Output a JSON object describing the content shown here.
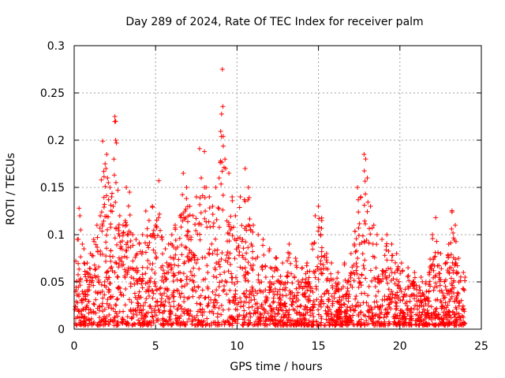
{
  "chart_data": {
    "type": "scatter",
    "title": "Day 289 of 2024, Rate Of TEC Index for receiver palm",
    "xlabel": "GPS time / hours",
    "ylabel": "ROTI / TECUs",
    "xlim": [
      0,
      25
    ],
    "ylim": [
      0,
      0.3
    ],
    "xticks": [
      0,
      5,
      10,
      15,
      20,
      25
    ],
    "xtick_labels": [
      "0",
      "5",
      "10",
      "15",
      "20",
      "25"
    ],
    "yticks": [
      0,
      0.05,
      0.1,
      0.15,
      0.2,
      0.25,
      0.3
    ],
    "ytick_labels": [
      "0",
      "0.05",
      "0.1",
      "0.15",
      "0.2",
      "0.25",
      "0.3"
    ],
    "grid": true,
    "marker": "plus",
    "color": "#ff0000",
    "series": [
      {
        "name": "ROTI",
        "points": [
          [
            0.1,
            0.072
          ],
          [
            0.2,
            0.095
          ],
          [
            0.3,
            0.128
          ],
          [
            0.35,
            0.12
          ],
          [
            0.4,
            0.105
          ],
          [
            0.5,
            0.09
          ],
          [
            0.6,
            0.085
          ],
          [
            0.8,
            0.07
          ],
          [
            1.0,
            0.08
          ],
          [
            1.2,
            0.095
          ],
          [
            1.4,
            0.11
          ],
          [
            1.6,
            0.12
          ],
          [
            1.75,
            0.199
          ],
          [
            1.9,
            0.175
          ],
          [
            1.95,
            0.17
          ],
          [
            2.0,
            0.185
          ],
          [
            2.05,
            0.16
          ],
          [
            2.1,
            0.155
          ],
          [
            2.2,
            0.15
          ],
          [
            2.3,
            0.14
          ],
          [
            2.4,
            0.13
          ],
          [
            2.5,
            0.225
          ],
          [
            2.55,
            0.22
          ],
          [
            2.55,
            0.2
          ],
          [
            2.6,
            0.197
          ],
          [
            2.8,
            0.12
          ],
          [
            3.0,
            0.11
          ],
          [
            3.2,
            0.15
          ],
          [
            3.4,
            0.145
          ],
          [
            3.6,
            0.1
          ],
          [
            3.8,
            0.095
          ],
          [
            4.0,
            0.09
          ],
          [
            4.2,
            0.1
          ],
          [
            4.4,
            0.125
          ],
          [
            4.6,
            0.115
          ],
          [
            4.8,
            0.13
          ],
          [
            5.0,
            0.11
          ],
          [
            5.2,
            0.157
          ],
          [
            5.4,
            0.095
          ],
          [
            5.6,
            0.085
          ],
          [
            5.8,
            0.09
          ],
          [
            6.0,
            0.1
          ],
          [
            6.2,
            0.11
          ],
          [
            6.5,
            0.12
          ],
          [
            6.7,
            0.165
          ],
          [
            6.9,
            0.15
          ],
          [
            7.1,
            0.13
          ],
          [
            7.3,
            0.12
          ],
          [
            7.5,
            0.14
          ],
          [
            7.7,
            0.191
          ],
          [
            7.8,
            0.16
          ],
          [
            8.0,
            0.188
          ],
          [
            8.1,
            0.15
          ],
          [
            8.3,
            0.14
          ],
          [
            8.5,
            0.13
          ],
          [
            8.7,
            0.15
          ],
          [
            8.9,
            0.16
          ],
          [
            9.1,
            0.275
          ],
          [
            9.15,
            0.204
          ],
          [
            9.3,
            0.17
          ],
          [
            9.5,
            0.165
          ],
          [
            9.7,
            0.14
          ],
          [
            9.9,
            0.12
          ],
          [
            10.2,
            0.14
          ],
          [
            10.5,
            0.17
          ],
          [
            10.7,
            0.15
          ],
          [
            11.0,
            0.11
          ],
          [
            11.3,
            0.1
          ],
          [
            11.6,
            0.095
          ],
          [
            12.0,
            0.085
          ],
          [
            12.4,
            0.075
          ],
          [
            12.8,
            0.07
          ],
          [
            13.2,
            0.09
          ],
          [
            13.6,
            0.075
          ],
          [
            14.0,
            0.065
          ],
          [
            14.3,
            0.07
          ],
          [
            14.6,
            0.09
          ],
          [
            14.8,
            0.12
          ],
          [
            15.0,
            0.13
          ],
          [
            15.2,
            0.115
          ],
          [
            15.5,
            0.08
          ],
          [
            15.8,
            0.07
          ],
          [
            16.2,
            0.06
          ],
          [
            16.6,
            0.07
          ],
          [
            17.0,
            0.08
          ],
          [
            17.2,
            0.09
          ],
          [
            17.4,
            0.15
          ],
          [
            17.6,
            0.14
          ],
          [
            17.8,
            0.185
          ],
          [
            17.9,
            0.18
          ],
          [
            18.0,
            0.16
          ],
          [
            18.2,
            0.13
          ],
          [
            18.4,
            0.11
          ],
          [
            18.6,
            0.1
          ],
          [
            18.9,
            0.095
          ],
          [
            19.2,
            0.1
          ],
          [
            19.5,
            0.09
          ],
          [
            19.8,
            0.08
          ],
          [
            20.1,
            0.07
          ],
          [
            20.5,
            0.065
          ],
          [
            20.9,
            0.06
          ],
          [
            21.3,
            0.055
          ],
          [
            21.6,
            0.05
          ],
          [
            22.0,
            0.1
          ],
          [
            22.2,
            0.118
          ],
          [
            22.5,
            0.08
          ],
          [
            22.8,
            0.07
          ],
          [
            23.0,
            0.09
          ],
          [
            23.2,
            0.124
          ],
          [
            23.4,
            0.11
          ],
          [
            23.6,
            0.075
          ],
          [
            23.9,
            0.06
          ],
          [
            24.0,
            0.055
          ]
        ],
        "noise_floor_points": [
          [
            0.5,
            0.04
          ],
          [
            1.5,
            0.05
          ],
          [
            2.5,
            0.06
          ],
          [
            3.5,
            0.055
          ],
          [
            4.5,
            0.065
          ],
          [
            5.5,
            0.05
          ],
          [
            6.5,
            0.06
          ],
          [
            7.5,
            0.07
          ],
          [
            8.5,
            0.08
          ],
          [
            9.5,
            0.075
          ],
          [
            10.5,
            0.065
          ],
          [
            11.5,
            0.05
          ],
          [
            12.5,
            0.04
          ],
          [
            13.5,
            0.035
          ],
          [
            14.5,
            0.045
          ],
          [
            15.5,
            0.04
          ],
          [
            16.5,
            0.035
          ],
          [
            17.5,
            0.05
          ],
          [
            18.5,
            0.045
          ],
          [
            19.5,
            0.04
          ],
          [
            20.5,
            0.045
          ],
          [
            21.5,
            0.035
          ],
          [
            22.5,
            0.03
          ],
          [
            23.5,
            0.03
          ]
        ]
      }
    ]
  }
}
